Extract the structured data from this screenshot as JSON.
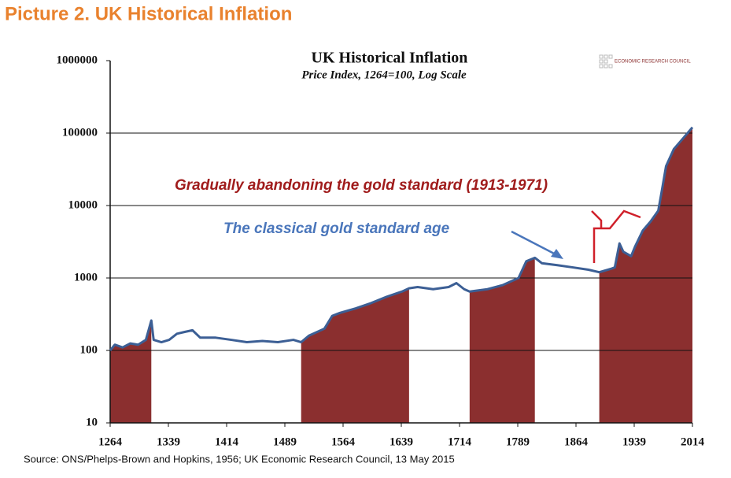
{
  "heading": "Picture 2. UK Historical Inflation",
  "source": "Source: ONS/Phelps-Brown  and Hopkins, 1956; UK Economic Research Council, 13 May 2015",
  "logo": "ECONOMIC RESEARCH COUNCIL",
  "chart_data": {
    "type": "line",
    "title": "UK Historical Inflation",
    "subtitle": "Price Index, 1264=100, Log Scale",
    "log_scale": true,
    "grid": true,
    "xlim": [
      1264,
      2014
    ],
    "xticks": [
      1264,
      1339,
      1414,
      1489,
      1564,
      1639,
      1714,
      1789,
      1864,
      1939,
      2014
    ],
    "ylim": [
      10,
      1000000
    ],
    "yticks": [
      10,
      100,
      1000,
      10000,
      100000,
      1000000
    ],
    "fill_color": "#8b2f2f",
    "shaded_periods": [
      [
        1264,
        1317
      ],
      [
        1510,
        1649
      ],
      [
        1727,
        1811
      ],
      [
        1894,
        2014
      ]
    ],
    "annotations": [
      {
        "text": "Gradually abandoning the gold standard (1913-1971)",
        "color": "#a01c1c"
      },
      {
        "text": "The classical gold standard age",
        "color": "#4a76bb"
      }
    ],
    "series": [
      {
        "name": "Price index",
        "color": "#3c5f95",
        "x": [
          1264,
          1270,
          1280,
          1290,
          1300,
          1310,
          1317,
          1320,
          1330,
          1340,
          1350,
          1360,
          1370,
          1380,
          1400,
          1420,
          1440,
          1460,
          1480,
          1500,
          1510,
          1520,
          1540,
          1550,
          1560,
          1580,
          1600,
          1620,
          1640,
          1649,
          1660,
          1680,
          1700,
          1710,
          1720,
          1727,
          1750,
          1770,
          1790,
          1800,
          1811,
          1820,
          1840,
          1860,
          1880,
          1894,
          1910,
          1914,
          1920,
          1925,
          1935,
          1940,
          1950,
          1960,
          1970,
          1975,
          1980,
          1990,
          2000,
          2014
        ],
        "values": [
          100,
          120,
          110,
          125,
          120,
          140,
          259,
          140,
          130,
          140,
          170,
          180,
          190,
          150,
          150,
          140,
          130,
          135,
          130,
          140,
          130,
          160,
          200,
          300,
          330,
          380,
          450,
          550,
          650,
          720,
          750,
          700,
          750,
          850,
          700,
          650,
          700,
          800,
          1000,
          1700,
          1900,
          1600,
          1500,
          1400,
          1300,
          1200,
          1350,
          1400,
          3000,
          2300,
          2000,
          2700,
          4500,
          6000,
          8500,
          17000,
          35000,
          60000,
          80000,
          120000
        ]
      }
    ]
  }
}
